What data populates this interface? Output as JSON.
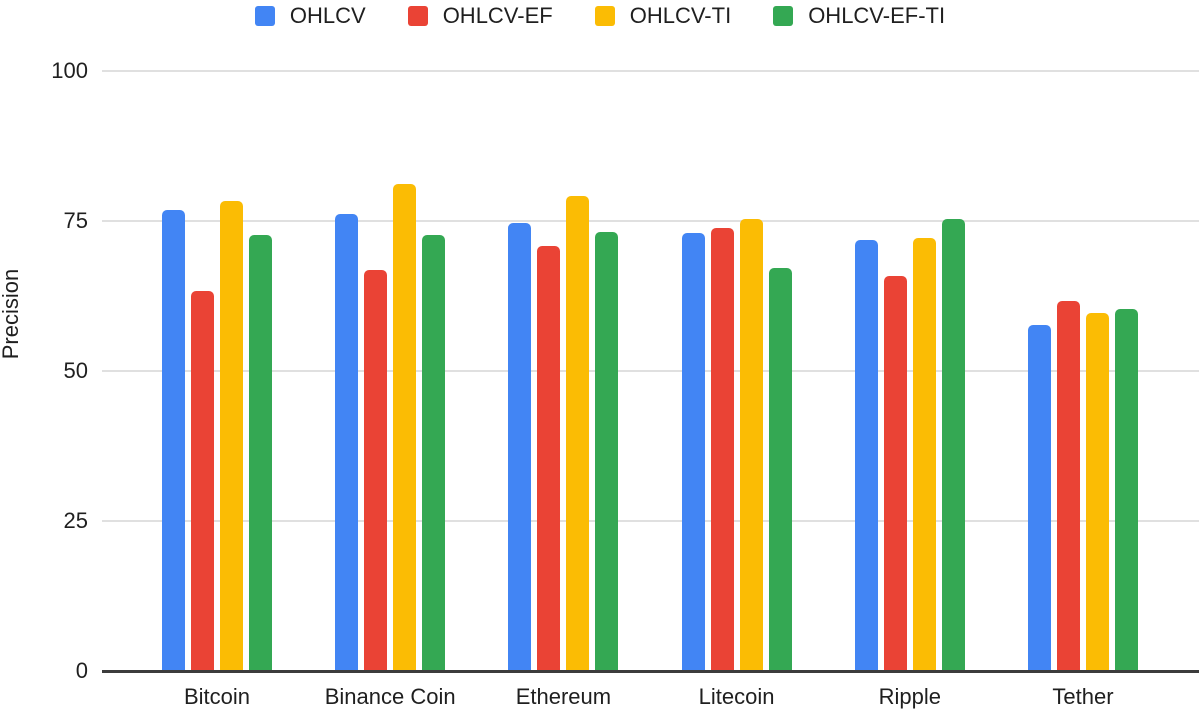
{
  "chart_data": {
    "type": "bar",
    "title": "",
    "categories": [
      "Bitcoin",
      "Binance Coin",
      "Ethereum",
      "Litecoin",
      "Ripple",
      "Tether"
    ],
    "series": [
      {
        "name": "OHLCV",
        "color": "#4285F4",
        "values": [
          76.9,
          76.1,
          74.7,
          73.0,
          71.9,
          57.7
        ]
      },
      {
        "name": "OHLCV-EF",
        "color": "#EA4335",
        "values": [
          63.3,
          66.9,
          70.8,
          73.8,
          65.8,
          61.6
        ]
      },
      {
        "name": "OHLCV-TI",
        "color": "#FBBC04",
        "values": [
          78.3,
          81.1,
          79.2,
          75.3,
          72.1,
          59.7
        ]
      },
      {
        "name": "OHLCV-EF-TI",
        "color": "#34A853",
        "values": [
          72.7,
          72.7,
          73.1,
          67.1,
          75.3,
          60.3
        ]
      }
    ],
    "xlabel": "",
    "ylabel": "Precision",
    "ylim": [
      0,
      100
    ],
    "yticks": [
      0,
      25,
      50,
      75,
      100
    ],
    "grid": true,
    "legend_position": "top",
    "gridline_color": "#e0e0e0",
    "axis_line_color": "#3c3c3c",
    "label_color": "#1f1f1f"
  }
}
